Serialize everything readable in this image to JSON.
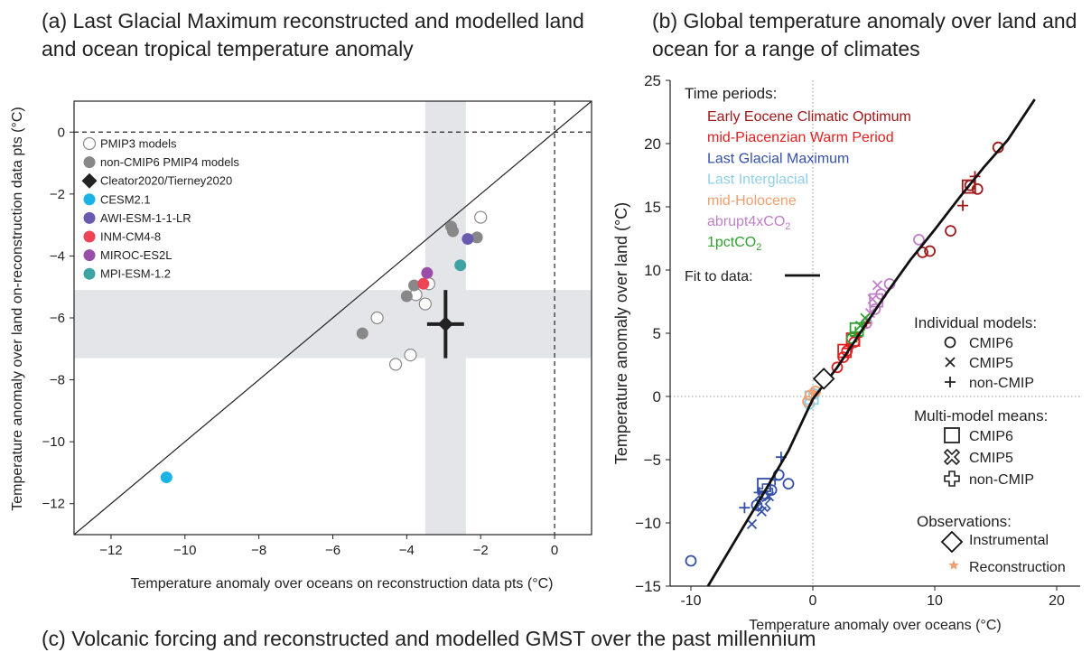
{
  "panel_titles": {
    "a": "(a) Last Glacial Maximum reconstructed and modelled land and ocean tropical temperature anomaly",
    "b": "(b) Global temperature anomaly over land and ocean for a range of climates",
    "c": "(c) Volcanic forcing and reconstructed and modelled GMST over the past millennium"
  },
  "chart_data": [
    {
      "type": "scatter",
      "title": "(a) Last Glacial Maximum reconstructed and modelled land and ocean tropical temperature anomaly",
      "xlabel": "Temperature anomaly over oceans on reconstruction data pts (°C)",
      "ylabel": "Temperature anomaly over land on-reconstruction data pts (°C)",
      "xlim": [
        -13,
        1
      ],
      "ylim": [
        -13,
        1
      ],
      "xticks": [
        -12,
        -10,
        -8,
        -6,
        -4,
        -2,
        0
      ],
      "yticks": [
        0,
        -2,
        -4,
        -6,
        -8,
        -10,
        -12
      ],
      "tick_labels_x": [
        "−12",
        "−10",
        "−8",
        "−6",
        "−4",
        "−2",
        "0"
      ],
      "tick_labels_y": [
        "0",
        "−2",
        "−4",
        "−6",
        "−8",
        "−10",
        "−12"
      ],
      "legend_position": "top-left",
      "reference_lines": [
        "1:1 line",
        "dashed zero lines"
      ],
      "shaded_ranges": {
        "x": [
          -3.5,
          -2.4
        ],
        "y": [
          -7.3,
          -5.1
        ]
      },
      "series": [
        {
          "name": "PMIP3 models",
          "marker": "open-circle",
          "color": "#888888",
          "points": [
            [
              -2.0,
              -2.75
            ],
            [
              -3.4,
              -4.9
            ],
            [
              -3.75,
              -5.25
            ],
            [
              -3.5,
              -5.55
            ],
            [
              -4.8,
              -6.0
            ],
            [
              -4.3,
              -7.5
            ],
            [
              -3.9,
              -7.2
            ]
          ]
        },
        {
          "name": "non-CMIP6 PMIP4 models",
          "marker": "filled-circle",
          "color": "#888888",
          "points": [
            [
              -2.8,
              -3.05
            ],
            [
              -2.75,
              -3.2
            ],
            [
              -2.1,
              -3.4
            ],
            [
              -3.8,
              -4.95
            ],
            [
              -4.0,
              -5.3
            ],
            [
              -5.2,
              -6.5
            ]
          ]
        },
        {
          "name": "Cleator2020/Tierney2020",
          "marker": "filled-diamond",
          "color": "#222222",
          "points": [
            [
              -2.95,
              -6.2
            ]
          ],
          "error_x": [
            -3.45,
            -2.45
          ],
          "error_y": [
            -7.3,
            -5.1
          ]
        },
        {
          "name": "CESM2.1",
          "marker": "filled-circle",
          "color": "#1ab3e6",
          "points": [
            [
              -10.5,
              -11.15
            ]
          ]
        },
        {
          "name": "AWI-ESM-1-1-LR",
          "marker": "filled-circle",
          "color": "#6a5ab0",
          "points": [
            [
              -2.35,
              -3.45
            ]
          ]
        },
        {
          "name": "INM-CM4-8",
          "marker": "filled-circle",
          "color": "#ee4455",
          "points": [
            [
              -3.55,
              -4.9
            ]
          ]
        },
        {
          "name": "MIROC-ES2L",
          "marker": "filled-circle",
          "color": "#9b4ea8",
          "points": [
            [
              -3.45,
              -4.55
            ]
          ]
        },
        {
          "name": "MPI-ESM-1.2",
          "marker": "filled-circle",
          "color": "#3fa3a3",
          "points": [
            [
              -2.55,
              -4.3
            ]
          ]
        }
      ]
    },
    {
      "type": "scatter",
      "title": "(b) Global temperature anomaly over land and ocean for a range of climates",
      "xlabel": "Temperature anomaly over oceans (°C)",
      "ylabel": "Temperature anomaly over land (°C)",
      "xlim": [
        -11,
        20
      ],
      "ylim": [
        -15,
        25
      ],
      "xticks": [
        -10,
        0,
        10,
        20
      ],
      "yticks": [
        25,
        20,
        15,
        10,
        5,
        0,
        -5,
        -10,
        -15
      ],
      "tick_labels_x": [
        "-10",
        "0",
        "10",
        "20"
      ],
      "tick_labels_y": [
        "25",
        "20",
        "15",
        "10",
        "5",
        "0",
        "−5",
        "−10",
        "−15"
      ],
      "legend_title": "Time periods:",
      "periods": [
        {
          "name": "Early Eocene Climatic Optimum",
          "color": "#a01818",
          "circles": [
            [
              15.2,
              19.7
            ],
            [
              13.5,
              16.4
            ],
            [
              12.9,
              16.7
            ],
            [
              11.3,
              13.1
            ],
            [
              9.6,
              11.5
            ],
            [
              9.0,
              11.4
            ]
          ],
          "plus": [
            [
              13.3,
              17.4
            ],
            [
              12.3,
              15.1
            ]
          ],
          "squares": [
            [
              12.8,
              16.6
            ]
          ]
        },
        {
          "name": "mid-Piacenzian Warm Period",
          "color": "#e02020",
          "circles": [
            [
              2.0,
              2.3
            ],
            [
              2.8,
              3.6
            ],
            [
              3.4,
              4.3
            ],
            [
              2.5,
              3.1
            ]
          ],
          "plus": [
            [
              2.9,
              3.8
            ],
            [
              3.6,
              4.7
            ],
            [
              4.4,
              5.8
            ]
          ],
          "squares": [
            [
              3.3,
              4.5
            ],
            [
              2.6,
              3.6
            ]
          ]
        },
        {
          "name": "Last Glacial Maximum",
          "color": "#3450a8",
          "circles": [
            [
              -10.0,
              -13.0
            ],
            [
              -2.0,
              -6.9
            ],
            [
              -2.8,
              -6.2
            ],
            [
              -3.4,
              -7.4
            ],
            [
              -4.6,
              -8.6
            ]
          ],
          "crosses": [
            [
              -5.0,
              -10.1
            ],
            [
              -3.6,
              -7.9
            ],
            [
              -4.2,
              -9.1
            ]
          ],
          "plus": [
            [
              -5.6,
              -8.8
            ],
            [
              -2.6,
              -4.8
            ],
            [
              -3.1,
              -6.6
            ],
            [
              -4.4,
              -7.6
            ]
          ],
          "squares": [
            [
              -4.0,
              -7.0
            ]
          ],
          "fat_crosses": [
            [
              -4.1,
              -8.5
            ]
          ],
          "fat_plus": [
            [
              -3.9,
              -7.5
            ]
          ]
        },
        {
          "name": "Last Interglacial",
          "color": "#8fd0e8",
          "circles": [
            [
              -0.3,
              -0.6
            ],
            [
              0.1,
              0.2
            ]
          ],
          "squares": [
            [
              -0.1,
              -0.1
            ]
          ]
        },
        {
          "name": "mid-Holocene",
          "color": "#f0a070",
          "circles": [
            [
              -0.2,
              0.1
            ],
            [
              0.2,
              0.4
            ],
            [
              -0.4,
              -0.4
            ]
          ],
          "stars": [
            [
              0.1,
              0.3
            ]
          ]
        },
        {
          "name": "abrupt4xCO2",
          "color": "#c080c8",
          "circles": [
            [
              6.3,
              8.9
            ],
            [
              5.6,
              8.1
            ],
            [
              8.7,
              12.4
            ],
            [
              4.4,
              5.8
            ],
            [
              5.1,
              6.9
            ]
          ],
          "crosses": [
            [
              5.3,
              8.8
            ],
            [
              4.9,
              7.7
            ],
            [
              4.7,
              6.6
            ]
          ],
          "squares": [
            [
              5.2,
              7.6
            ]
          ]
        },
        {
          "name": "1pctCO2",
          "color": "#30a030",
          "circles": [
            [
              3.2,
              4.6
            ]
          ],
          "crosses": [
            [
              3.9,
              5.6
            ],
            [
              4.3,
              6.2
            ]
          ],
          "plus": [
            [
              3.5,
              5.1
            ]
          ],
          "squares": [
            [
              3.6,
              5.3
            ]
          ]
        }
      ],
      "fit_label": "Fit to data:",
      "fit_curve": [
        [
          -8.6,
          -15
        ],
        [
          -6,
          -10.8
        ],
        [
          -4,
          -7.6
        ],
        [
          -2,
          -4.3
        ],
        [
          0,
          -0.2
        ],
        [
          2,
          2.3
        ],
        [
          4,
          5.2
        ],
        [
          6,
          8.1
        ],
        [
          8,
          10.8
        ],
        [
          10,
          13.2
        ],
        [
          12,
          15.7
        ],
        [
          14,
          18.1
        ],
        [
          16,
          20.3
        ],
        [
          18.2,
          23.5
        ]
      ],
      "instrumental_obs": [
        [
          0.9,
          1.4
        ]
      ],
      "individual_models_title": "Individual models:",
      "individual_models": [
        "CMIP6",
        "CMIP5",
        "non-CMIP"
      ],
      "multi_model_title": "Multi-model means:",
      "multi_model": [
        "CMIP6",
        "CMIP5",
        "non-CMIP"
      ],
      "observations_title": "Observations:",
      "observations": [
        "Instrumental",
        "Reconstruction"
      ]
    }
  ]
}
